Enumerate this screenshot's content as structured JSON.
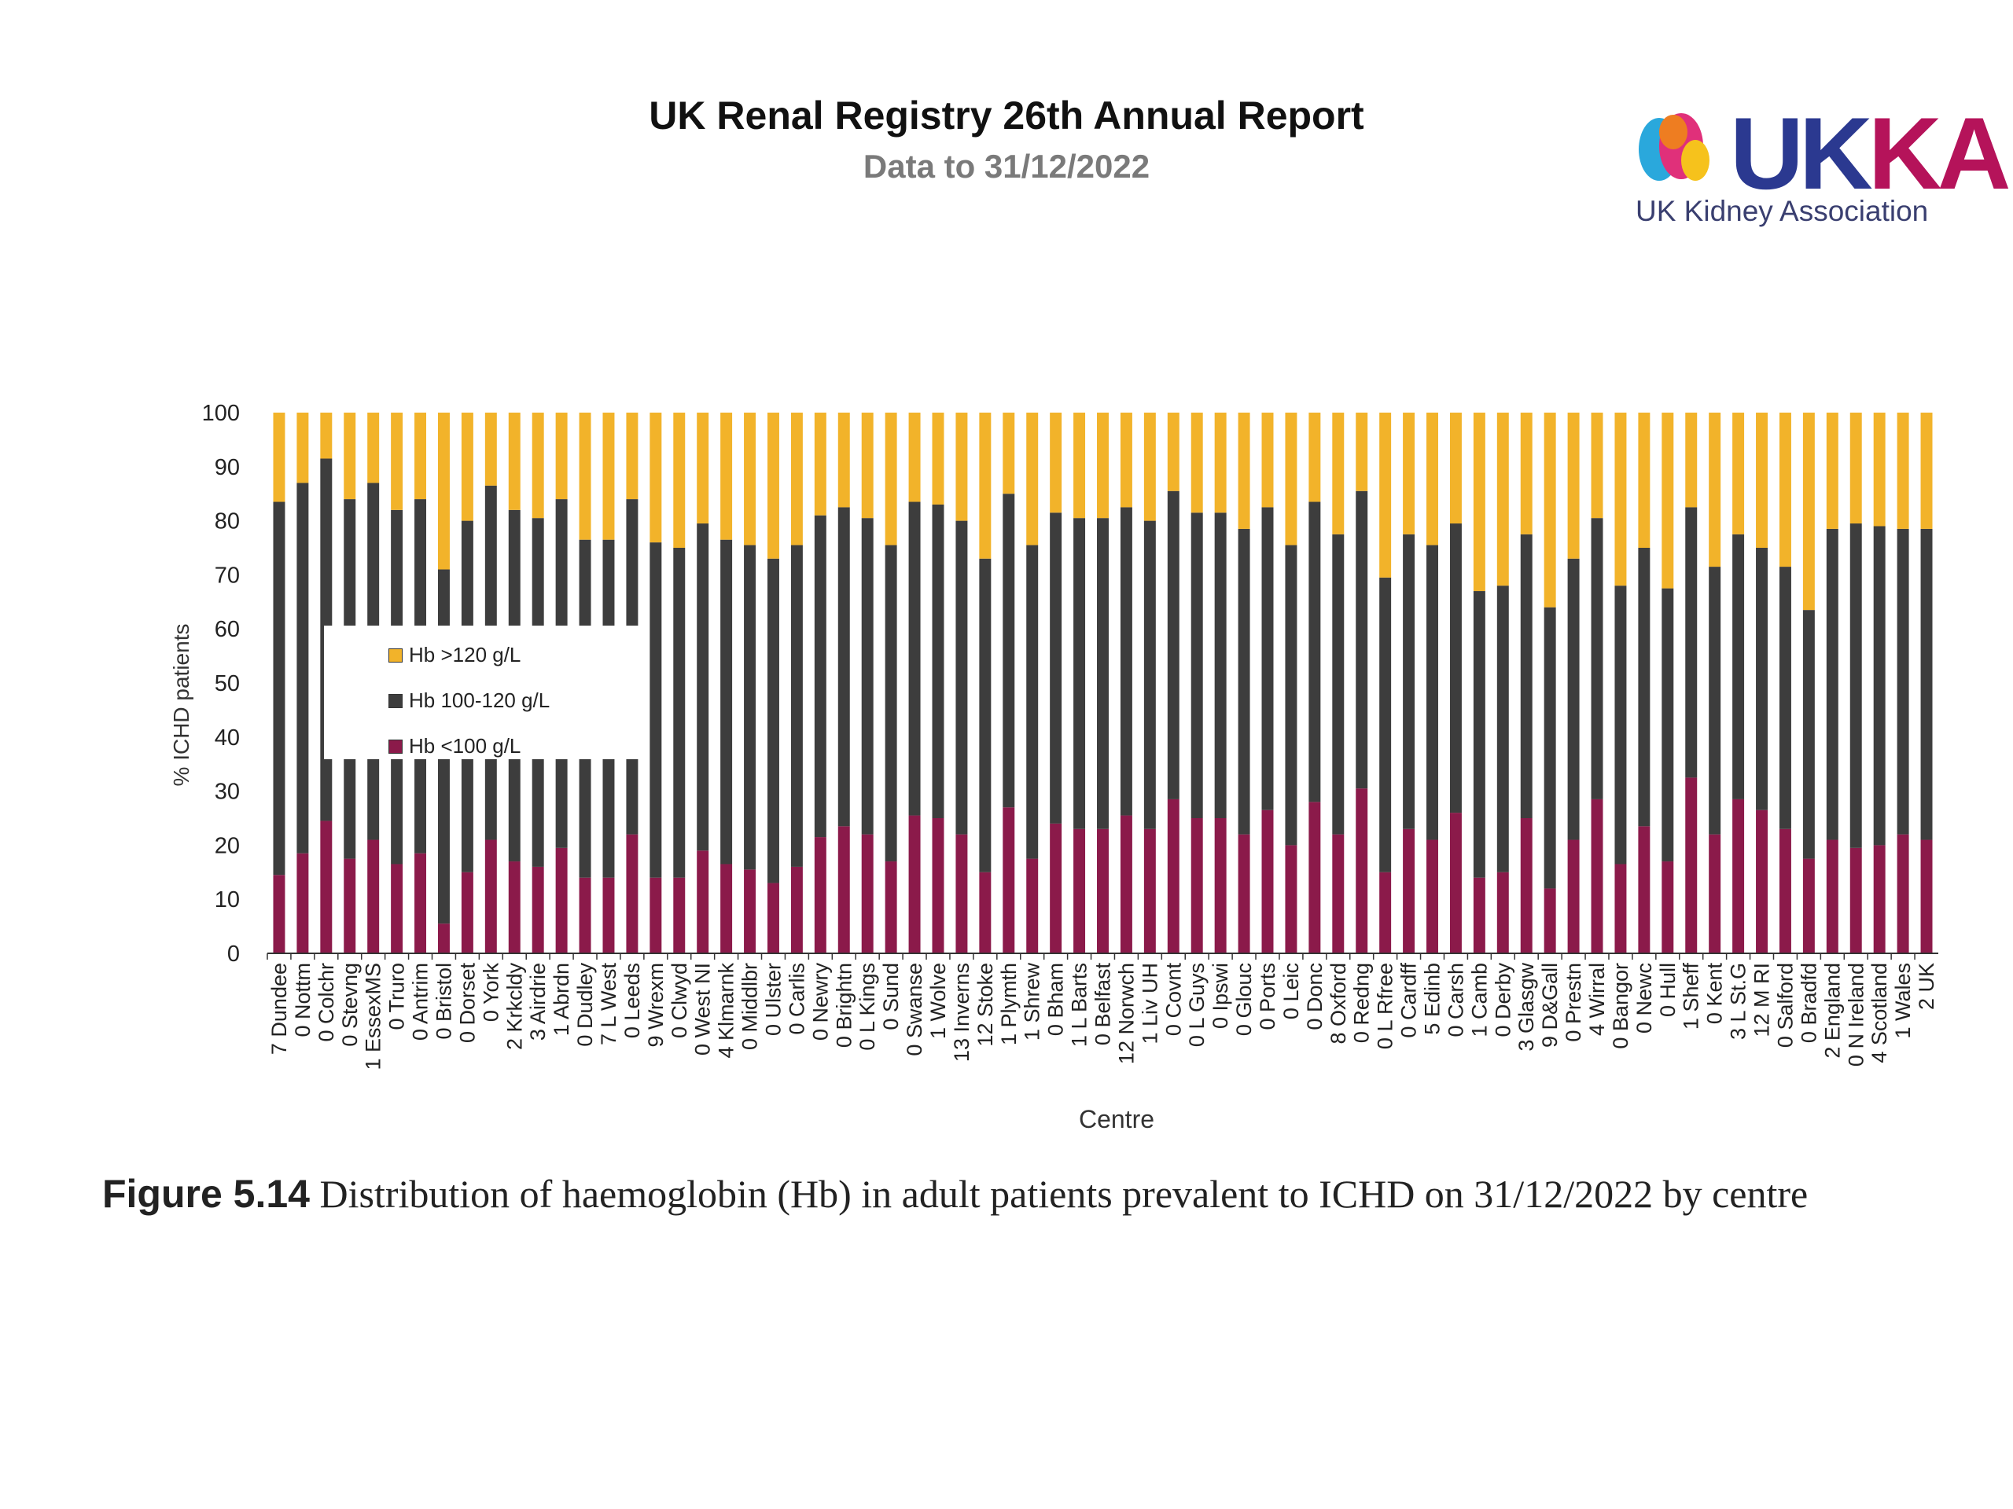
{
  "header": {
    "title": "UK Renal Registry 26th Annual Report",
    "subtitle": "Data to 31/12/2022"
  },
  "logo": {
    "wordmark_a": "UK",
    "wordmark_b": "KA",
    "tagline": "UK Kidney Association",
    "colors": {
      "blue": "#2b3990",
      "magenta": "#b5135a",
      "yellow": "#f6c21c",
      "orange": "#ee7d21",
      "pink": "#e0307a",
      "cyan": "#2aa8dc"
    }
  },
  "caption": {
    "label": "Figure 5.14",
    "text": "Distribution of haemoglobin (Hb) in adult patients prevalent to ICHD on 31/12/2022 by centre"
  },
  "chart_data": {
    "type": "bar",
    "stacked": true,
    "xlabel": "Centre",
    "ylabel": "% ICHD patients",
    "ylim": [
      0,
      100
    ],
    "yticks": [
      0,
      10,
      20,
      30,
      40,
      50,
      60,
      70,
      80,
      90,
      100
    ],
    "grid": false,
    "legend_position": "left-middle",
    "categories": [
      "7 Dundee",
      "0 Nottm",
      "0 Colchr",
      "0 Stevng",
      "1 EssexMS",
      "0 Truro",
      "0 Antrim",
      "0 Bristol",
      "0 Dorset",
      "0 York",
      "2 Krkcldy",
      "3 Airdrie",
      "1 Abrdn",
      "0 Dudley",
      "7 L West",
      "0 Leeds",
      "9 Wrexm",
      "0 Clwyd",
      "0 West NI",
      "4 Klmarnk",
      "0 Middlbr",
      "0 Ulster",
      "0 Carlis",
      "0 Newry",
      "0 Brightn",
      "0 L Kings",
      "0 Sund",
      "0 Swanse",
      "1 Wolve",
      "13 Inverns",
      "12 Stoke",
      "1 Plymth",
      "1 Shrew",
      "0 Bham",
      "1 L Barts",
      "0 Belfast",
      "12 Norwch",
      "1 Liv UH",
      "0 Covnt",
      "0 L Guys",
      "0 Ipswi",
      "0 Glouc",
      "0 Ports",
      "0 Leic",
      "0 Donc",
      "8 Oxford",
      "0 Redng",
      "0 L Rfree",
      "0 Cardff",
      "5 Edinb",
      "0 Carsh",
      "1 Camb",
      "0 Derby",
      "3 Glasgw",
      "9 D&Gall",
      "0 Prestn",
      "4 Wirral",
      "0 Bangor",
      "0 Newc",
      "0 Hull",
      "1 Sheff",
      "0 Kent",
      "3 L St.G",
      "12 M RI",
      "0 Salford",
      "0 Bradfd",
      "2 England",
      "0 N Ireland",
      "4 Scotland",
      "1 Wales",
      "2 UK"
    ],
    "series": [
      {
        "name": "Hb <100 g/L",
        "color": "#8b1a4a",
        "values": [
          14.5,
          18.5,
          24.5,
          17.5,
          21,
          16.5,
          18.5,
          5.5,
          15,
          21,
          17,
          16,
          19.5,
          14,
          14,
          22,
          14,
          14,
          19,
          16.5,
          15.5,
          13,
          16,
          21.5,
          23.5,
          22,
          17,
          25.5,
          25,
          22,
          15,
          27,
          17.5,
          24,
          23,
          23,
          25.5,
          23,
          28.5,
          25,
          25,
          22,
          26.5,
          20,
          28,
          22,
          30.5,
          15,
          23,
          21,
          26,
          14,
          15,
          25,
          12,
          21,
          28.5,
          16.5,
          23.5,
          17,
          32.5,
          22,
          28.5,
          26.5,
          23,
          17.5,
          21,
          19.5,
          20,
          22,
          21
        ]
      },
      {
        "name": "Hb 100-120 g/L",
        "color": "#3d3d3d",
        "values": [
          69,
          68.5,
          67,
          66.5,
          66,
          65.5,
          65.5,
          65.5,
          65,
          65.5,
          65,
          64.5,
          64.5,
          62.5,
          62.5,
          62,
          62,
          61,
          60.5,
          60,
          60,
          60,
          59.5,
          59.5,
          59,
          58.5,
          58.5,
          58,
          58,
          58,
          58,
          58,
          58,
          57.5,
          57.5,
          57.5,
          57,
          57,
          57,
          56.5,
          56.5,
          56.5,
          56,
          55.5,
          55.5,
          55.5,
          55,
          54.5,
          54.5,
          54.5,
          53.5,
          53,
          53,
          52.5,
          52,
          52,
          52,
          51.5,
          51.5,
          50.5,
          50,
          49.5,
          49,
          48.5,
          48.5,
          46,
          57.5,
          60,
          59,
          56.5,
          57.5
        ]
      },
      {
        "name": "Hb >120 g/L",
        "color": "#f2b32a",
        "values": [
          16.5,
          13,
          8.5,
          16,
          13,
          18,
          16,
          29,
          20,
          13.5,
          18,
          19.5,
          16,
          23.5,
          23.5,
          16,
          24,
          25,
          20.5,
          23.5,
          24.5,
          27,
          24.5,
          19,
          17.5,
          19.5,
          24.5,
          16.5,
          17,
          20,
          27,
          15,
          24.5,
          18.5,
          19.5,
          19.5,
          17.5,
          20,
          14.5,
          18.5,
          18.5,
          21.5,
          17.5,
          24.5,
          16.5,
          22.5,
          14.5,
          30.5,
          22.5,
          24.5,
          20.5,
          33,
          32,
          22.5,
          36,
          27,
          19.5,
          32,
          25,
          32.5,
          17.5,
          28.5,
          22.5,
          25,
          28.5,
          36.5,
          21.5,
          20.5,
          21,
          21.5,
          21.5
        ]
      }
    ]
  }
}
